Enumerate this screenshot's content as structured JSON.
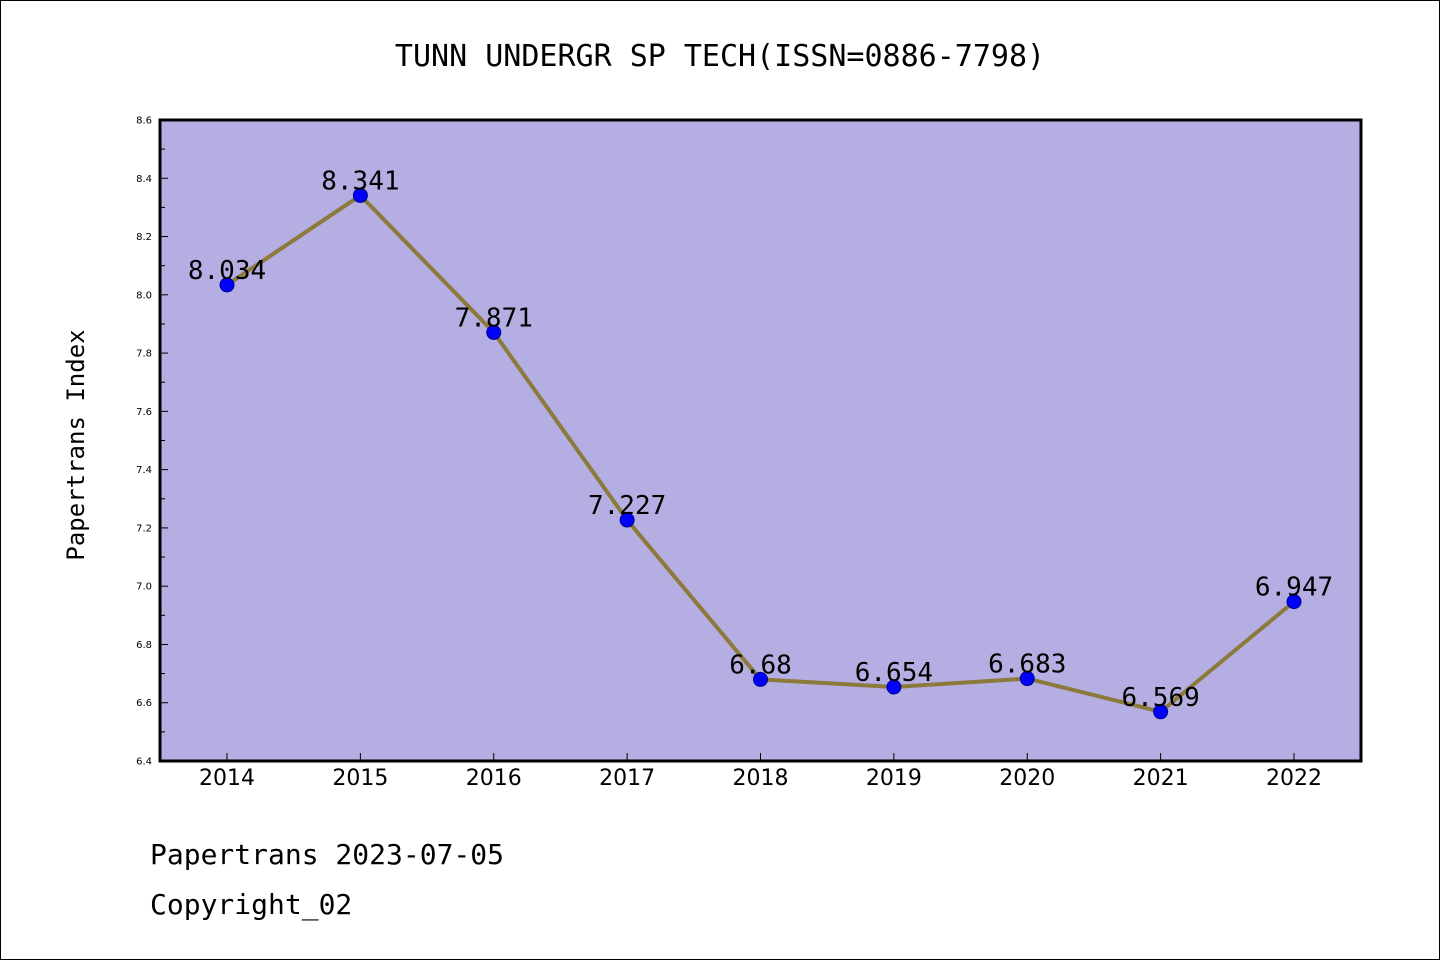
{
  "chart_data": {
    "type": "line",
    "title": "TUNN UNDERGR SP TECH(ISSN=0886-7798)",
    "xlabel": "",
    "ylabel": "Papertrans Index",
    "categories": [
      "2014",
      "2015",
      "2016",
      "2017",
      "2018",
      "2019",
      "2020",
      "2021",
      "2022"
    ],
    "values": [
      8.034,
      8.341,
      7.871,
      7.227,
      6.68,
      6.654,
      6.683,
      6.569,
      6.947
    ],
    "data_labels": [
      "8.034",
      "8.341",
      "7.871",
      "7.227",
      "6.68",
      "6.654",
      "6.683",
      "6.569",
      "6.947"
    ],
    "ylim": [
      6.4,
      8.6
    ],
    "yticks": [
      "6.4",
      "6.6",
      "6.8",
      "7.0",
      "7.2",
      "7.4",
      "7.6",
      "7.8",
      "8.0",
      "8.2",
      "8.4",
      "8.6"
    ],
    "grid": false,
    "legend": "none",
    "colors": {
      "plot_background": "#b4aee2",
      "line": "#8b7a3a",
      "marker": "#0000ff",
      "marker_edge": "#00008b"
    }
  },
  "footer": {
    "line1": "Papertrans 2023-07-05",
    "line2": "Copyright_02"
  }
}
